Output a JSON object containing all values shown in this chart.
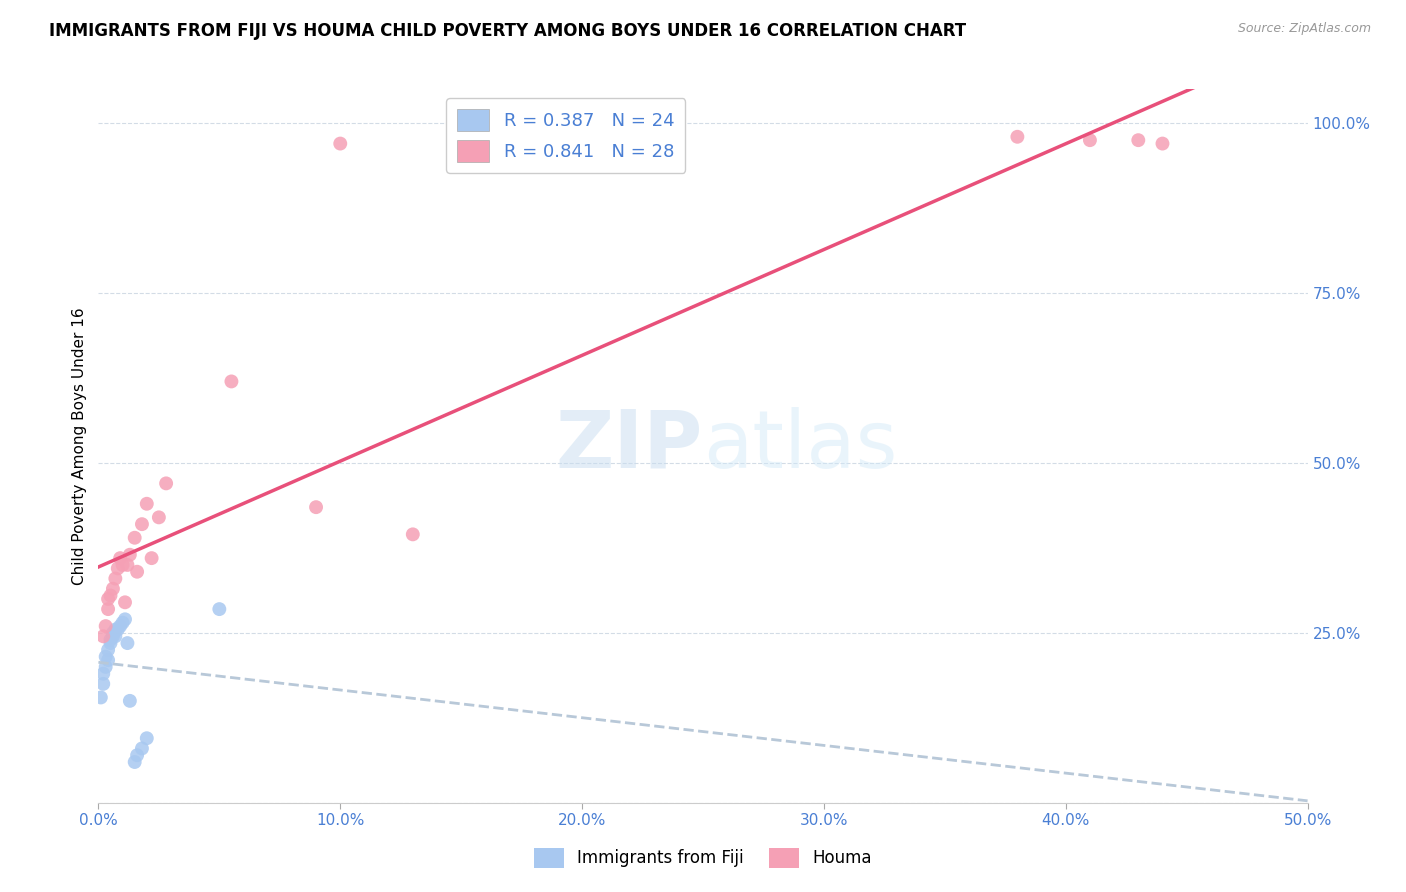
{
  "title": "IMMIGRANTS FROM FIJI VS HOUMA CHILD POVERTY AMONG BOYS UNDER 16 CORRELATION CHART",
  "source": "Source: ZipAtlas.com",
  "ylabel": "Child Poverty Among Boys Under 16",
  "xlim": [
    0.0,
    0.5
  ],
  "ylim": [
    0.0,
    1.05
  ],
  "xticks": [
    0.0,
    0.1,
    0.2,
    0.3,
    0.4,
    0.5
  ],
  "yticks": [
    0.0,
    0.25,
    0.5,
    0.75,
    1.0
  ],
  "xticklabels": [
    "0.0%",
    "10.0%",
    "20.0%",
    "30.0%",
    "40.0%",
    "50.0%"
  ],
  "yticklabels": [
    "",
    "25.0%",
    "50.0%",
    "75.0%",
    "100.0%"
  ],
  "fiji_color": "#a8c8f0",
  "houma_color": "#f5a0b5",
  "fiji_line_color": "#4a7fd4",
  "houma_line_color": "#e8507a",
  "dashed_line_color": "#b8c8d8",
  "fiji_R": 0.387,
  "fiji_N": 24,
  "houma_R": 0.841,
  "houma_N": 28,
  "fiji_scatter_x": [
    0.001,
    0.002,
    0.002,
    0.003,
    0.003,
    0.004,
    0.004,
    0.005,
    0.005,
    0.006,
    0.006,
    0.007,
    0.007,
    0.008,
    0.009,
    0.01,
    0.011,
    0.012,
    0.013,
    0.015,
    0.016,
    0.018,
    0.02,
    0.05
  ],
  "fiji_scatter_y": [
    0.155,
    0.175,
    0.19,
    0.2,
    0.215,
    0.21,
    0.225,
    0.235,
    0.24,
    0.245,
    0.25,
    0.245,
    0.255,
    0.255,
    0.26,
    0.265,
    0.27,
    0.235,
    0.15,
    0.06,
    0.07,
    0.08,
    0.095,
    0.285
  ],
  "houma_scatter_x": [
    0.002,
    0.003,
    0.004,
    0.004,
    0.005,
    0.006,
    0.007,
    0.008,
    0.009,
    0.01,
    0.011,
    0.012,
    0.013,
    0.015,
    0.016,
    0.018,
    0.02,
    0.022,
    0.025,
    0.028,
    0.055,
    0.09,
    0.1,
    0.13,
    0.38,
    0.41,
    0.43,
    0.44
  ],
  "houma_scatter_y": [
    0.245,
    0.26,
    0.285,
    0.3,
    0.305,
    0.315,
    0.33,
    0.345,
    0.36,
    0.35,
    0.295,
    0.35,
    0.365,
    0.39,
    0.34,
    0.41,
    0.44,
    0.36,
    0.42,
    0.47,
    0.62,
    0.435,
    0.97,
    0.395,
    0.98,
    0.975,
    0.975,
    0.97
  ],
  "watermark_zip": "ZIP",
  "watermark_atlas": "atlas",
  "legend_fontsize": 13,
  "title_fontsize": 12,
  "axis_label_fontsize": 11,
  "tick_fontsize": 11
}
